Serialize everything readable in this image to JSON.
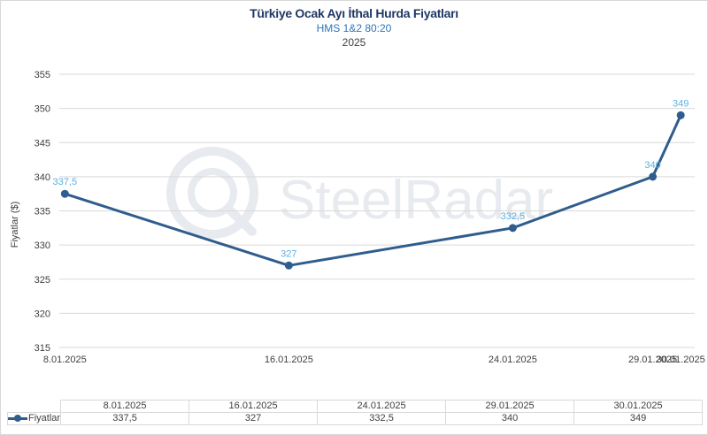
{
  "title": "Türkiye Ocak Ayı İthal Hurda Fiyatları",
  "subtitle": "HMS 1&2 80:20",
  "year": "2025",
  "watermark": "SteelRadar",
  "colors": {
    "line": "#2e5d8e",
    "data_label": "#5bb1e0",
    "grid": "#d9d9d9",
    "title": "#1f3864",
    "subtitle": "#2e75b6"
  },
  "chart_data": {
    "type": "line",
    "title": "Türkiye Ocak Ayı İthal Hurda Fiyatları",
    "subtitle": "HMS 1&2 80:20",
    "xlabel": "",
    "ylabel": "Fiyatlar ($)",
    "ylim": [
      315,
      355
    ],
    "yticks": [
      315,
      320,
      325,
      330,
      335,
      340,
      345,
      350,
      355
    ],
    "x": [
      "8.01.2025",
      "16.01.2025",
      "24.01.2025",
      "29.01.2025",
      "30.01.2025"
    ],
    "x_day": [
      8,
      16,
      24,
      29,
      30
    ],
    "series": [
      {
        "name": "Fiyatlar",
        "values": [
          337.5,
          327,
          332.5,
          340,
          349
        ],
        "labels": [
          "337,5",
          "327",
          "332,5",
          "340",
          "349"
        ]
      }
    ],
    "grid": true,
    "legend": "data-table"
  },
  "table": {
    "series_label": "Fiyatlar",
    "columns": [
      "8.01.2025",
      "16.01.2025",
      "24.01.2025",
      "29.01.2025",
      "30.01.2025"
    ],
    "values": [
      "337,5",
      "327",
      "332,5",
      "340",
      "349"
    ]
  }
}
